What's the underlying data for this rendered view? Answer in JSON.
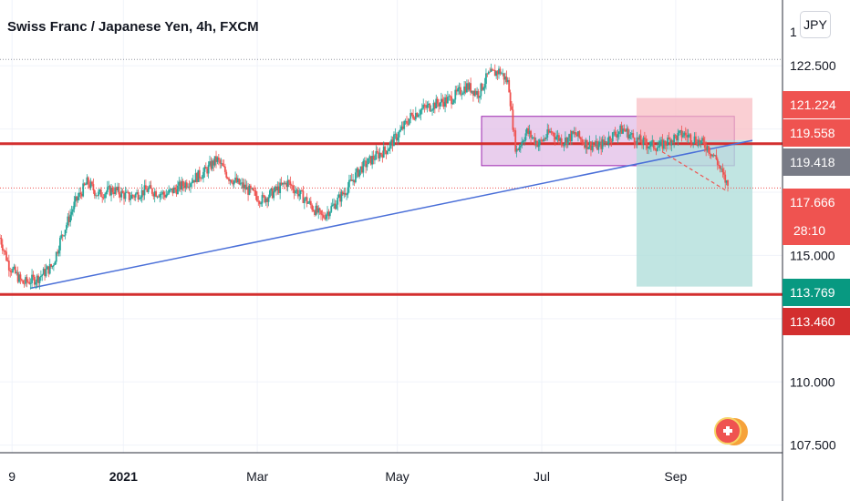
{
  "header": {
    "title": "Swiss Franc / Japanese Yen, 4h, FXCM",
    "currency_button": "JPY"
  },
  "colors": {
    "bull": "#26a69a",
    "bear": "#ef5350",
    "support_line": "#d32f2f",
    "trendline": "#4a6fd8",
    "range_box_fill": "#e1bee7",
    "range_box_border": "#9c27b0",
    "stop_zone": "#f8bbc0",
    "target_zone": "#b2dfdb",
    "projection": "#ef5350"
  },
  "chart_data": {
    "type": "line",
    "title": "Swiss Franc / Japanese Yen, 4h, FXCM",
    "symbol": "CHFJPY",
    "timeframe": "4h",
    "source": "FXCM",
    "xlabel": "",
    "ylabel": "",
    "ylim": [
      107.2,
      125.1
    ],
    "y_ticks": [
      "122.500",
      "115.000",
      "110.000",
      "107.500"
    ],
    "x_ticks": [
      "9",
      "2021",
      "Mar",
      "May",
      "Jul",
      "Sep"
    ],
    "grid": true,
    "series": [
      {
        "values": [
          [
            0.0,
            115.7
          ],
          [
            0.6,
            114.6
          ],
          [
            1.5,
            113.9
          ],
          [
            2.5,
            114.1
          ],
          [
            3.5,
            114.6
          ],
          [
            4.0,
            115.6
          ],
          [
            5.0,
            117.1
          ],
          [
            5.8,
            117.9
          ],
          [
            6.5,
            117.4
          ],
          [
            7.5,
            117.6
          ],
          [
            8.6,
            117.3
          ],
          [
            9.8,
            117.6
          ],
          [
            11.0,
            117.4
          ],
          [
            12.2,
            117.8
          ],
          [
            13.6,
            118.3
          ],
          [
            14.4,
            118.8
          ],
          [
            15.2,
            118.1
          ],
          [
            16.2,
            117.7
          ],
          [
            17.4,
            117.2
          ],
          [
            18.2,
            117.5
          ],
          [
            19.1,
            117.9
          ],
          [
            20.3,
            117.2
          ],
          [
            21.4,
            116.5
          ],
          [
            22.2,
            117.0
          ],
          [
            23.0,
            117.6
          ],
          [
            23.9,
            118.4
          ],
          [
            24.9,
            118.9
          ],
          [
            25.7,
            119.2
          ],
          [
            26.6,
            119.9
          ],
          [
            27.3,
            120.5
          ],
          [
            28.1,
            120.8
          ],
          [
            29.0,
            121.0
          ],
          [
            30.0,
            121.2
          ],
          [
            31.0,
            121.7
          ],
          [
            31.8,
            121.4
          ],
          [
            32.4,
            122.1
          ],
          [
            33.2,
            122.3
          ],
          [
            33.8,
            121.8
          ],
          [
            34.0,
            120.6
          ],
          [
            34.3,
            119.1
          ],
          [
            35.0,
            119.9
          ],
          [
            35.8,
            119.4
          ],
          [
            36.6,
            119.9
          ],
          [
            37.4,
            119.5
          ],
          [
            38.2,
            119.8
          ],
          [
            39.0,
            119.4
          ],
          [
            39.8,
            119.3
          ],
          [
            40.6,
            119.7
          ],
          [
            41.4,
            120.0
          ],
          [
            42.2,
            119.6
          ],
          [
            43.0,
            119.4
          ],
          [
            43.8,
            119.3
          ],
          [
            44.6,
            119.6
          ],
          [
            45.4,
            119.8
          ],
          [
            46.2,
            119.6
          ],
          [
            47.0,
            119.3
          ],
          [
            47.6,
            118.8
          ],
          [
            48.0,
            118.2
          ],
          [
            48.4,
            117.7
          ]
        ]
      }
    ],
    "levels": [
      {
        "label": "119.418",
        "value": 119.418,
        "style": "horizontal-line"
      },
      {
        "label": "113.460",
        "value": 113.46,
        "style": "horizontal-line"
      }
    ],
    "trendline": {
      "from": [
        2.0,
        113.7
      ],
      "to": [
        50.0,
        119.55
      ]
    },
    "range_box": {
      "x": [
        32.0,
        48.8
      ],
      "y": [
        118.55,
        120.5
      ]
    },
    "position": {
      "entry": 119.558,
      "stop": 121.224,
      "target": 113.769,
      "x": [
        42.3,
        50.0
      ]
    },
    "projection": {
      "from": [
        44.0,
        119.1
      ],
      "to": [
        48.3,
        117.55
      ]
    },
    "last_price": 117.666,
    "countdown": "28:10",
    "badges": [
      {
        "text": "121.224",
        "value": 121.224,
        "color": "#ef5350"
      },
      {
        "text": "119.558",
        "value": 119.558,
        "color": "#ef5350"
      },
      {
        "text": "119.418",
        "value": 119.418,
        "color": "#787b86"
      },
      {
        "text": "117.666",
        "value": 117.666,
        "color": "#ef5350",
        "sub": "28:10"
      },
      {
        "text": "113.769",
        "value": 113.769,
        "color": "#089981"
      },
      {
        "text": "113.460",
        "value": 113.46,
        "color": "#d32f2f"
      }
    ],
    "price_axis_label_partial": "1"
  }
}
